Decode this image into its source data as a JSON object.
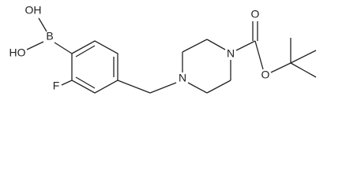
{
  "labels": {
    "hydroxyl_top": "OH",
    "hydroxyl_left": "HO",
    "boron": "B",
    "fluorine": "F",
    "nitrogen_left": "N",
    "nitrogen_right": "N",
    "carbonyl_oxygen": "O",
    "ester_oxygen": "O"
  }
}
